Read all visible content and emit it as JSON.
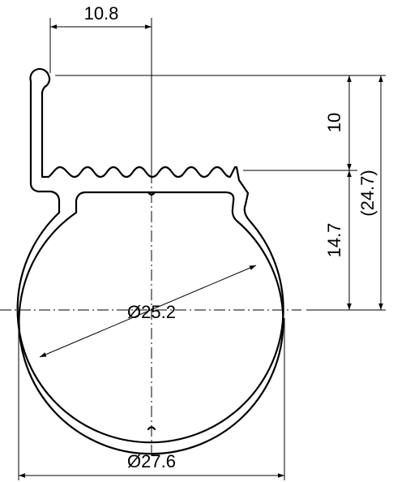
{
  "dimensions": {
    "top_width": "10.8",
    "upper_height": "10",
    "lower_height": "14.7",
    "total_height": "(24.7)",
    "inner_diameter": "Ø25.2",
    "outer_diameter": "Ø27.6"
  }
}
